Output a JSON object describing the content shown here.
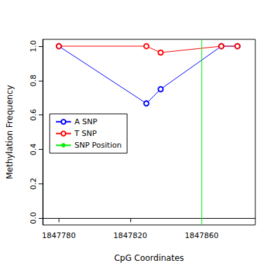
{
  "chart_data": {
    "type": "line",
    "x_label": "CpG Coordinates",
    "y_label": "Methylation Frequency",
    "series": [
      {
        "name": "A SNP",
        "color": "#0000ff",
        "marker": "circle",
        "x": [
          1847780,
          1847829,
          1847837,
          1847871,
          1847880
        ],
        "values": [
          1.0,
          0.667,
          0.75,
          1.0,
          1.0
        ]
      },
      {
        "name": "T SNP",
        "color": "#ff0000",
        "marker": "circle",
        "x": [
          1847780,
          1847829,
          1847837,
          1847871,
          1847880
        ],
        "values": [
          1.0,
          1.0,
          0.963,
          1.0,
          1.0
        ]
      }
    ],
    "snp_position": {
      "name": "SNP Position",
      "color": "#00ee00",
      "x": 1847860
    },
    "xlim": [
      1847771,
      1847890
    ],
    "xticks": [
      1847780,
      1847820,
      1847860
    ],
    "ylim": [
      -0.04,
      1.04
    ],
    "yticks": [
      {
        "value": 0,
        "label": "0.0"
      },
      {
        "value": 0.2,
        "label": "0.2"
      },
      {
        "value": 0.4,
        "label": "0.4"
      },
      {
        "value": 0.6,
        "label": "0.6"
      },
      {
        "value": 0.8,
        "label": "0.8"
      },
      {
        "value": 1,
        "label": "1.0"
      }
    ],
    "legend": "left",
    "grid": false
  }
}
